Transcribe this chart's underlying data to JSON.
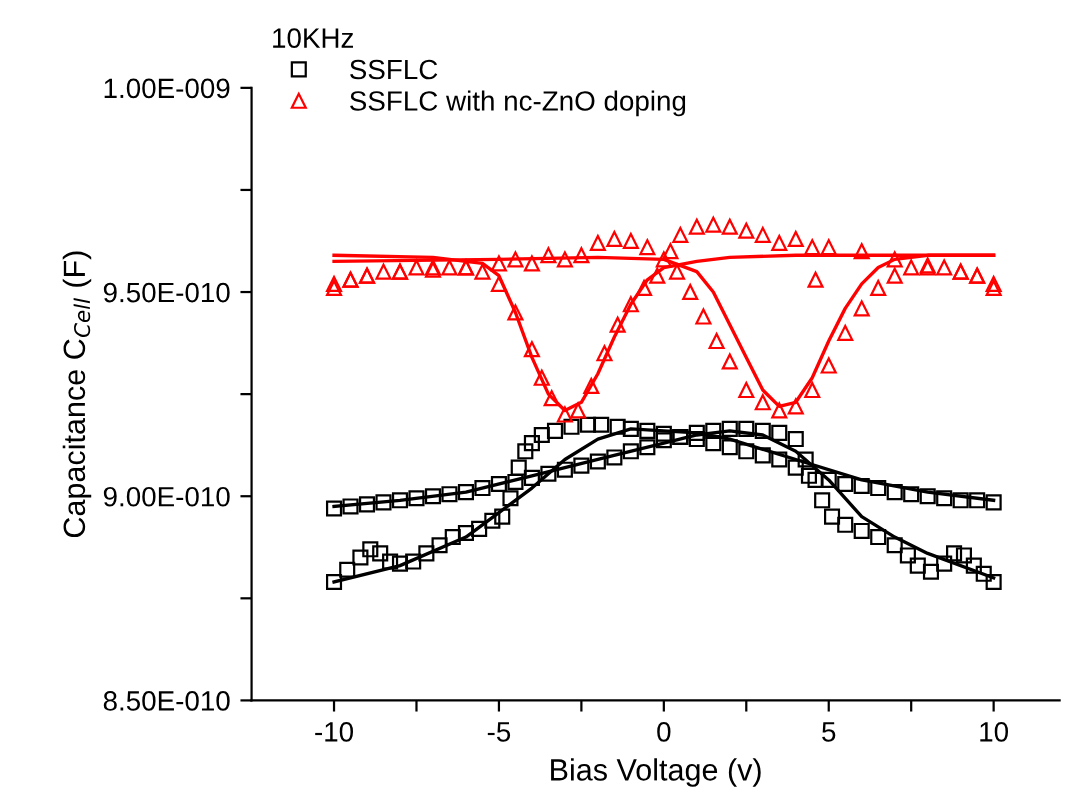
{
  "chart_data": {
    "type": "scatter",
    "xlabel": "Bias Voltage (v)",
    "ylabel": "Capacitance C$_{Cell}$ (F)",
    "legend_title": "10KHz",
    "legend": "top left",
    "grid": false,
    "xlim": [
      -12.5,
      12
    ],
    "xticks": [
      -10,
      {
        "value": -7.5,
        "label": null
      },
      -5,
      {
        "value": -2.5,
        "label": null
      },
      0,
      {
        "value": 2.5,
        "label": null
      },
      5,
      {
        "value": 7.5,
        "label": null
      },
      10
    ],
    "ylim": [
      8.5e-10,
      1e-09
    ],
    "yticks": [
      {
        "value": 8.5e-10,
        "label": "8.50E-010"
      },
      {
        "value": 8.75e-10,
        "label": null
      },
      {
        "value": 9e-10,
        "label": "9.00E-010"
      },
      {
        "value": 9.25e-10,
        "label": null
      },
      {
        "value": 9.5e-10,
        "label": "9.50E-010"
      },
      {
        "value": 9.75e-10,
        "label": null
      },
      {
        "value": 1e-09,
        "label": "1.00E-009"
      }
    ],
    "series": [
      {
        "name": "SSFLC",
        "marker": "square",
        "color": "#000000",
        "x": [
          -10,
          -9.6,
          -9.2,
          -8.9,
          -8.6,
          -8.3,
          -8,
          -7.6,
          -7.2,
          -6.8,
          -6.4,
          -6,
          -5.6,
          -5.2,
          -4.9,
          -4.65,
          -4.4,
          -4.2,
          -4,
          -3.7,
          -3.3,
          -2.8,
          -2.3,
          -1.9,
          -1.4,
          -1,
          -0.5,
          0,
          0.5,
          1,
          1.5,
          2,
          2.5,
          3,
          3.5,
          4,
          4.4,
          5,
          5.5,
          6,
          6.5,
          7,
          7.5,
          8,
          8.5,
          9,
          9.5,
          10,
          -10,
          -9.5,
          -9,
          -8.5,
          -8,
          -7.5,
          -7,
          -6.5,
          -6,
          -5.5,
          -5,
          -4.5,
          -4,
          -3.5,
          -3,
          -2.5,
          -2,
          -1.5,
          -1,
          -0.5,
          0,
          0.5,
          1,
          1.5,
          2,
          2.5,
          3,
          3.5,
          4,
          4.3,
          4.6,
          4.8,
          5.1,
          5.5,
          6,
          6.5,
          7,
          7.4,
          7.7,
          8.1,
          8.5,
          8.8,
          9.1,
          9.4,
          9.7,
          10
        ],
        "values": [
          8.79e-10,
          8.82e-10,
          8.85e-10,
          8.87e-10,
          8.86e-10,
          8.84e-10,
          8.835e-10,
          8.84e-10,
          8.86e-10,
          8.88e-10,
          8.9e-10,
          8.91e-10,
          8.92e-10,
          8.94e-10,
          8.95e-10,
          8.995e-10,
          9.07e-10,
          9.11e-10,
          9.13e-10,
          9.15e-10,
          9.16e-10,
          9.17e-10,
          9.175e-10,
          9.175e-10,
          9.17e-10,
          9.165e-10,
          9.16e-10,
          9.153e-10,
          9.145e-10,
          9.14e-10,
          9.13e-10,
          9.12e-10,
          9.11e-10,
          9.1e-10,
          9.09e-10,
          9.07e-10,
          9.05e-10,
          9.04e-10,
          9.03e-10,
          9.025e-10,
          9.02e-10,
          9.01e-10,
          9.005e-10,
          9e-10,
          8.995e-10,
          8.99e-10,
          8.99e-10,
          8.985e-10,
          8.97e-10,
          8.975e-10,
          8.98e-10,
          8.985e-10,
          8.99e-10,
          8.995e-10,
          9e-10,
          9.005e-10,
          9.01e-10,
          9.02e-10,
          9.03e-10,
          9.035e-10,
          9.045e-10,
          9.055e-10,
          9.065e-10,
          9.075e-10,
          9.085e-10,
          9.095e-10,
          9.11e-10,
          9.12e-10,
          9.137e-10,
          9.145e-10,
          9.155e-10,
          9.16e-10,
          9.165e-10,
          9.165e-10,
          9.16e-10,
          9.155e-10,
          9.14e-10,
          9.09e-10,
          9.04e-10,
          8.99e-10,
          8.95e-10,
          8.93e-10,
          8.915e-10,
          8.9e-10,
          8.88e-10,
          8.855e-10,
          8.83e-10,
          8.815e-10,
          8.835e-10,
          8.86e-10,
          8.855e-10,
          8.83e-10,
          8.81e-10,
          8.79e-10
        ]
      },
      {
        "name": "SSFLC with nc-ZnO doping",
        "marker": "triangle",
        "color": "#ff0000",
        "x": [
          -10,
          -9.5,
          -9,
          -8.5,
          -8,
          -7.5,
          -7,
          -6.5,
          -6,
          -5.5,
          -5,
          -4.5,
          -4,
          -3.7,
          -3.4,
          -3,
          -2.6,
          -2.2,
          -1.8,
          -1.4,
          -1,
          -0.6,
          -0.2,
          0.2,
          0.5,
          1,
          1.5,
          2,
          2.5,
          3,
          3.5,
          4,
          4.5,
          5,
          6,
          7,
          8,
          9,
          9.5,
          10,
          -10,
          -9.5,
          -9,
          -8,
          -7,
          -6,
          -5,
          -4.5,
          -4,
          -3.5,
          -3,
          -2.5,
          -2,
          -1.5,
          -1,
          -0.5,
          0,
          0.4,
          0.8,
          1.2,
          1.6,
          2,
          2.5,
          3,
          3.5,
          4,
          4.5,
          4.6,
          5,
          5.5,
          6,
          6.5,
          7,
          7.5,
          8,
          8.5,
          9,
          9.5,
          10
        ],
        "values": [
          9.52e-10,
          9.53e-10,
          9.54e-10,
          9.55e-10,
          9.55e-10,
          9.56e-10,
          9.56e-10,
          9.56e-10,
          9.56e-10,
          9.55e-10,
          9.52e-10,
          9.45e-10,
          9.36e-10,
          9.29e-10,
          9.24e-10,
          9.2e-10,
          9.21e-10,
          9.27e-10,
          9.35e-10,
          9.42e-10,
          9.47e-10,
          9.51e-10,
          9.54e-10,
          9.6e-10,
          9.64e-10,
          9.66e-10,
          9.665e-10,
          9.66e-10,
          9.65e-10,
          9.64e-10,
          9.62e-10,
          9.63e-10,
          9.61e-10,
          9.61e-10,
          9.6e-10,
          9.58e-10,
          9.56e-10,
          9.55e-10,
          9.54e-10,
          9.52e-10,
          9.51e-10,
          9.53e-10,
          9.54e-10,
          9.55e-10,
          9.555e-10,
          9.56e-10,
          9.57e-10,
          9.58e-10,
          9.57e-10,
          9.59e-10,
          9.58e-10,
          9.59e-10,
          9.62e-10,
          9.63e-10,
          9.625e-10,
          9.61e-10,
          9.58e-10,
          9.55e-10,
          9.5e-10,
          9.44e-10,
          9.38e-10,
          9.33e-10,
          9.26e-10,
          9.23e-10,
          9.21e-10,
          9.22e-10,
          9.26e-10,
          9.53e-10,
          9.32e-10,
          9.4e-10,
          9.46e-10,
          9.51e-10,
          9.54e-10,
          9.56e-10,
          9.565e-10,
          9.56e-10,
          9.55e-10,
          9.54e-10,
          9.51e-10
        ]
      },
      {
        "type": "line",
        "color": "#000000",
        "x": [
          -10,
          -8,
          -6,
          -5,
          -4,
          -3,
          -2,
          -1,
          0,
          1,
          2,
          4,
          6,
          8,
          10
        ],
        "values": [
          8.79e-10,
          8.83e-10,
          8.9e-10,
          8.96e-10,
          9.02e-10,
          9.09e-10,
          9.14e-10,
          9.165e-10,
          9.16e-10,
          9.155e-10,
          9.14e-10,
          9.09e-10,
          9.04e-10,
          9.01e-10,
          8.99e-10
        ]
      },
      {
        "type": "line",
        "color": "#000000",
        "x": [
          -10,
          -8,
          -6,
          -4,
          -2,
          0,
          1,
          2,
          3,
          4,
          5,
          6,
          7,
          8,
          10
        ],
        "values": [
          8.975e-10,
          8.99e-10,
          9.01e-10,
          9.05e-10,
          9.09e-10,
          9.13e-10,
          9.15e-10,
          9.16e-10,
          9.15e-10,
          9.11e-10,
          9.04e-10,
          8.95e-10,
          8.9e-10,
          8.86e-10,
          8.8e-10
        ]
      },
      {
        "type": "line",
        "color": "#ff0000",
        "x": [
          -10,
          -7,
          -5.5,
          -5,
          -4.5,
          -4,
          -3.5,
          -3,
          -2.5,
          -2,
          -1.5,
          -1,
          -0.5,
          0,
          1,
          2,
          4,
          10
        ],
        "values": [
          9.59e-10,
          9.585e-10,
          9.57e-10,
          9.54e-10,
          9.45e-10,
          9.34e-10,
          9.25e-10,
          9.21e-10,
          9.23e-10,
          9.3e-10,
          9.39e-10,
          9.47e-10,
          9.53e-10,
          9.56e-10,
          9.575e-10,
          9.585e-10,
          9.59e-10,
          9.59e-10
        ]
      },
      {
        "type": "line",
        "color": "#ff0000",
        "x": [
          -10,
          -5,
          -2,
          0,
          1,
          1.5,
          2,
          2.5,
          3,
          3.5,
          4,
          4.5,
          5,
          5.5,
          6,
          6.5,
          7,
          8,
          10
        ],
        "values": [
          9.575e-10,
          9.58e-10,
          9.585e-10,
          9.58e-10,
          9.55e-10,
          9.5e-10,
          9.42e-10,
          9.34e-10,
          9.26e-10,
          9.22e-10,
          9.23e-10,
          9.29e-10,
          9.38e-10,
          9.46e-10,
          9.52e-10,
          9.56e-10,
          9.58e-10,
          9.59e-10,
          9.59e-10
        ]
      }
    ]
  }
}
